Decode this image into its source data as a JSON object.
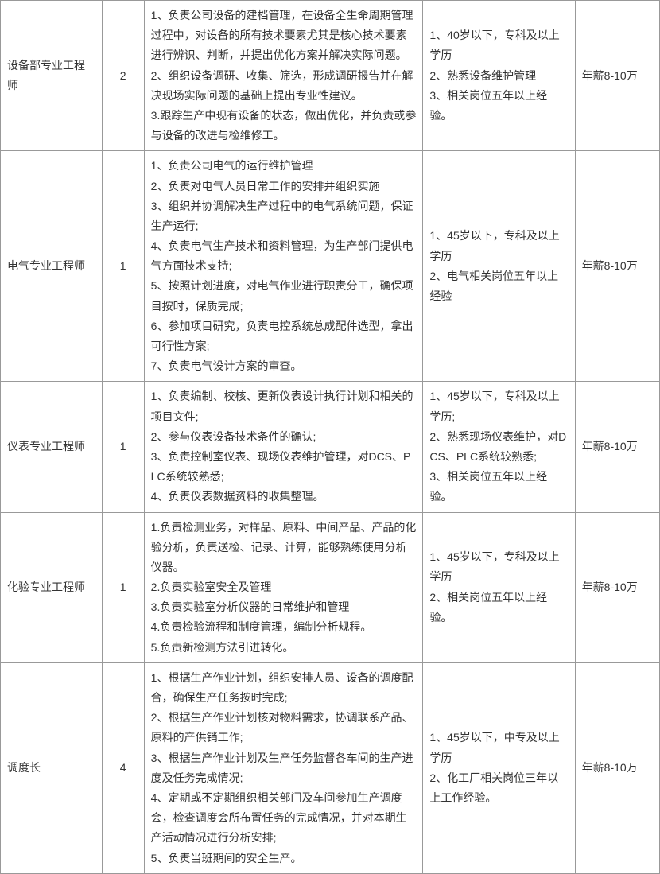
{
  "rows": [
    {
      "title": "设备部专业工程师",
      "count": "2",
      "duty": "1、负责公司设备的建档管理，在设备全生命周期管理过程中，对设备的所有技术要素尤其是核心技术要素进行辨识、判断，并提出优化方案并解决实际问题。\n2、组织设备调研、收集、筛选，形成调研报告并在解决现场实际问题的基础上提出专业性建议。\n3.跟踪生产中现有设备的状态，做出优化，并负责或参与设备的改进与检维修工。",
      "req": "1、40岁以下，专科及以上学历\n2、熟悉设备维护管理\n3、相关岗位五年以上经验。",
      "salary": "年薪8-10万"
    },
    {
      "title": "电气专业工程师",
      "count": "1",
      "duty": "1、负责公司电气的运行维护管理\n2、负责对电气人员日常工作的安排并组织实施\n3、组织并协调解决生产过程中的电气系统问题，保证生产运行;\n4、负责电气生产技术和资料管理，为生产部门提供电气方面技术支持;\n5、按照计划进度，对电气作业进行职责分工，确保项目按时，保质完成;\n6、参加项目研究，负责电控系统总成配件选型，拿出可行性方案;\n7、负责电气设计方案的审查。",
      "req": "1、45岁以下，专科及以上学历\n2、电气相关岗位五年以上经验",
      "salary": "年薪8-10万"
    },
    {
      "title": "仪表专业工程师",
      "count": "1",
      "duty": "1、负责编制、校核、更新仪表设计执行计划和相关的项目文件;\n2、参与仪表设备技术条件的确认;\n3、负责控制室仪表、现场仪表维护管理，对DCS、PLC系统较熟悉;\n4、负责仪表数据资料的收集整理。",
      "req": "1、45岁以下，专科及以上学历;\n2、熟悉现场仪表维护，对DCS、PLC系统较熟悉;\n3、相关岗位五年以上经验。",
      "salary": "年薪8-10万"
    },
    {
      "title": "化验专业工程师",
      "count": "1",
      "duty": "1.负责检测业务，对样品、原料、中间产品、产品的化验分析，负责送检、记录、计算，能够熟练使用分析仪器。\n2.负责实验室安全及管理\n3.负责实验室分析仪器的日常维护和管理\n4.负责检验流程和制度管理，编制分析规程。\n5.负责新检测方法引进转化。",
      "req": "1、45岁以下，专科及以上学历\n2、相关岗位五年以上经验。",
      "salary": "年薪8-10万"
    },
    {
      "title": "调度长",
      "count": "4",
      "duty": "1、根据生产作业计划，组织安排人员、设备的调度配合，确保生产任务按时完成;\n2、根据生产作业计划核对物料需求，协调联系产品、原料的产供销工作;\n3、根据生产作业计划及生产任务监督各车间的生产进度及任务完成情况;\n4、定期或不定期组织相关部门及车间参加生产调度会，检查调度会所布置任务的完成情况，并对本期生产活动情况进行分析安排;\n5、负责当班期间的安全生产。",
      "req": "1、45岁以下，中专及以上学历\n2、化工厂相关岗位三年以上工作经验。",
      "salary": "年薪8-10万"
    }
  ]
}
